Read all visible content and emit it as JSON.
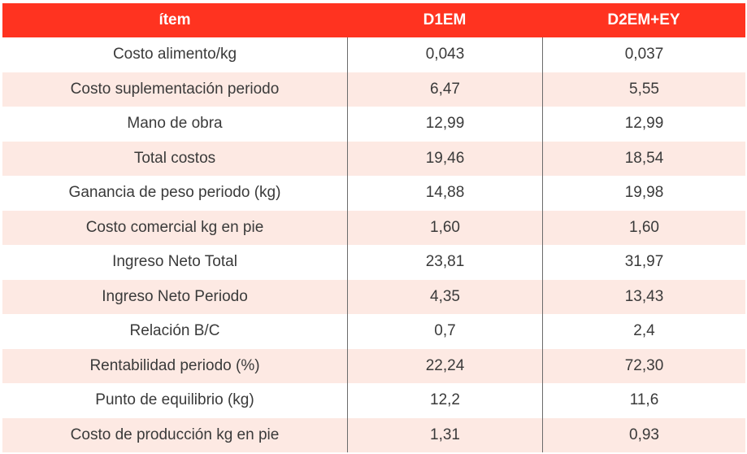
{
  "table": {
    "headers": [
      "ítem",
      "D1EM",
      "D2EM+EY"
    ],
    "rows": [
      {
        "item": "Costo alimento/kg",
        "d1em": "0,043",
        "d2em_ey": "0,037"
      },
      {
        "item": "Costo suplementación periodo",
        "d1em": "6,47",
        "d2em_ey": "5,55"
      },
      {
        "item": "Mano de obra",
        "d1em": "12,99",
        "d2em_ey": "12,99"
      },
      {
        "item": "Total costos",
        "d1em": "19,46",
        "d2em_ey": "18,54"
      },
      {
        "item": "Ganancia de peso periodo (kg)",
        "d1em": "14,88",
        "d2em_ey": "19,98"
      },
      {
        "item": "Costo comercial kg en pie",
        "d1em": "1,60",
        "d2em_ey": "1,60"
      },
      {
        "item": "Ingreso Neto Total",
        "d1em": "23,81",
        "d2em_ey": "31,97"
      },
      {
        "item": "Ingreso Neto Periodo",
        "d1em": "4,35",
        "d2em_ey": "13,43"
      },
      {
        "item": "Relación B/C",
        "d1em": "0,7",
        "d2em_ey": "2,4"
      },
      {
        "item": "Rentabilidad periodo (%)",
        "d1em": "22,24",
        "d2em_ey": "72,30"
      },
      {
        "item": "Punto de equilibrio (kg)",
        "d1em": "12,2",
        "d2em_ey": "11,6"
      },
      {
        "item": "Costo de producción kg en pie",
        "d1em": "1,31",
        "d2em_ey": "0,93"
      }
    ],
    "colors": {
      "header_bg": "#ff3320",
      "header_text": "#ffffff",
      "alt_row_bg": "#fde9e3",
      "body_text": "#3a3a3a"
    }
  }
}
